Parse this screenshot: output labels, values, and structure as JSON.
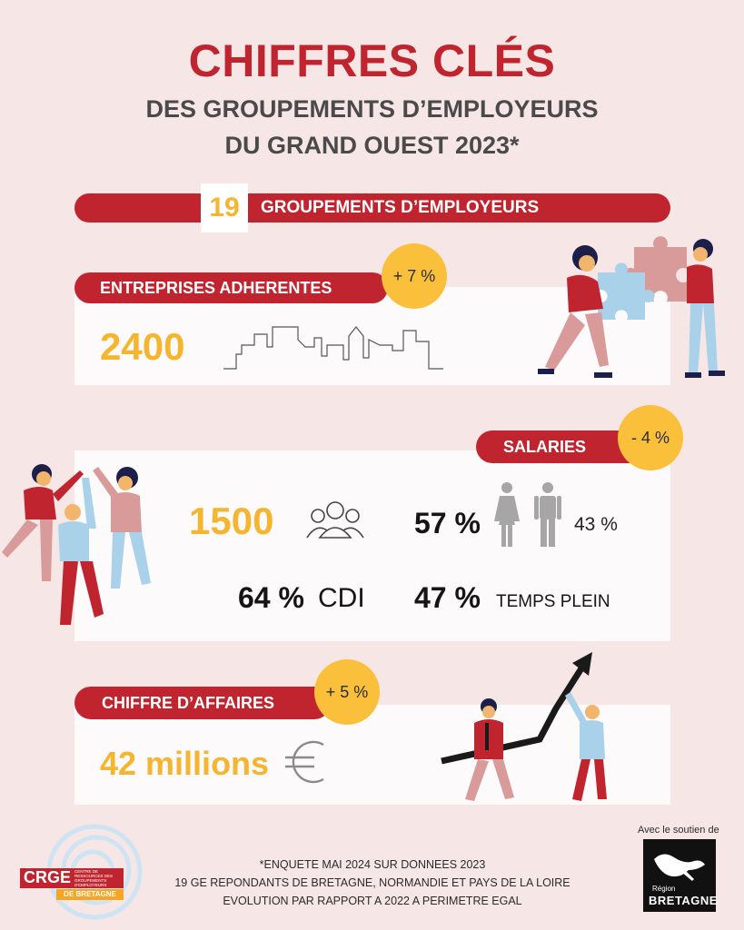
{
  "header": {
    "title": "CHIFFRES CLÉS",
    "subtitle_line1": "DES GROUPEMENTS D’EMPLOYEURS",
    "subtitle_line2": "DU GRAND OUEST 2023*"
  },
  "groupements": {
    "count": "19",
    "label": "GROUPEMENTS D’EMPLOYEURS"
  },
  "entreprises": {
    "label": "ENTREPRISES ADHERENTES",
    "badge": "+ 7 %",
    "value": "2400"
  },
  "salaries": {
    "label": "SALARIES",
    "badge": "- 4 %",
    "value": "1500",
    "women_pct": "57 %",
    "men_pct": "43 %",
    "cdi_pct": "64 %",
    "cdi_label": "CDI",
    "temps_plein_pct": "47 %",
    "temps_plein_label": "TEMPS PLEIN"
  },
  "chiffre_affaires": {
    "label": "CHIFFRE D’AFFAIRES",
    "badge": "+ 5 %",
    "value": "42 millions"
  },
  "footnote": {
    "line1": "*ENQUETE MAI 2024 SUR DONNEES 2023",
    "line2": "19 GE REPONDANTS DE BRETAGNE, NORMANDIE ET PAYS DE LA LOIRE",
    "line3": "EVOLUTION PAR RAPPORT A 2022 A PERIMETRE EGAL"
  },
  "logos": {
    "crge_main": "CRGE",
    "crge_small1": "CENTRE DE",
    "crge_small2": "RESSOURCES DES",
    "crge_small3": "GROUPEMENTS",
    "crge_small4": "D'EMPLOYEURS",
    "crge_region": "DE BRETAGNE",
    "soutien": "Avec le soutien de",
    "region_small": "Région",
    "region_big": "BRETAGNE"
  },
  "colors": {
    "red": "#c0252f",
    "yellow": "#fbc03b",
    "grey": "#4a4a4a",
    "background": "#f7e6e6"
  }
}
